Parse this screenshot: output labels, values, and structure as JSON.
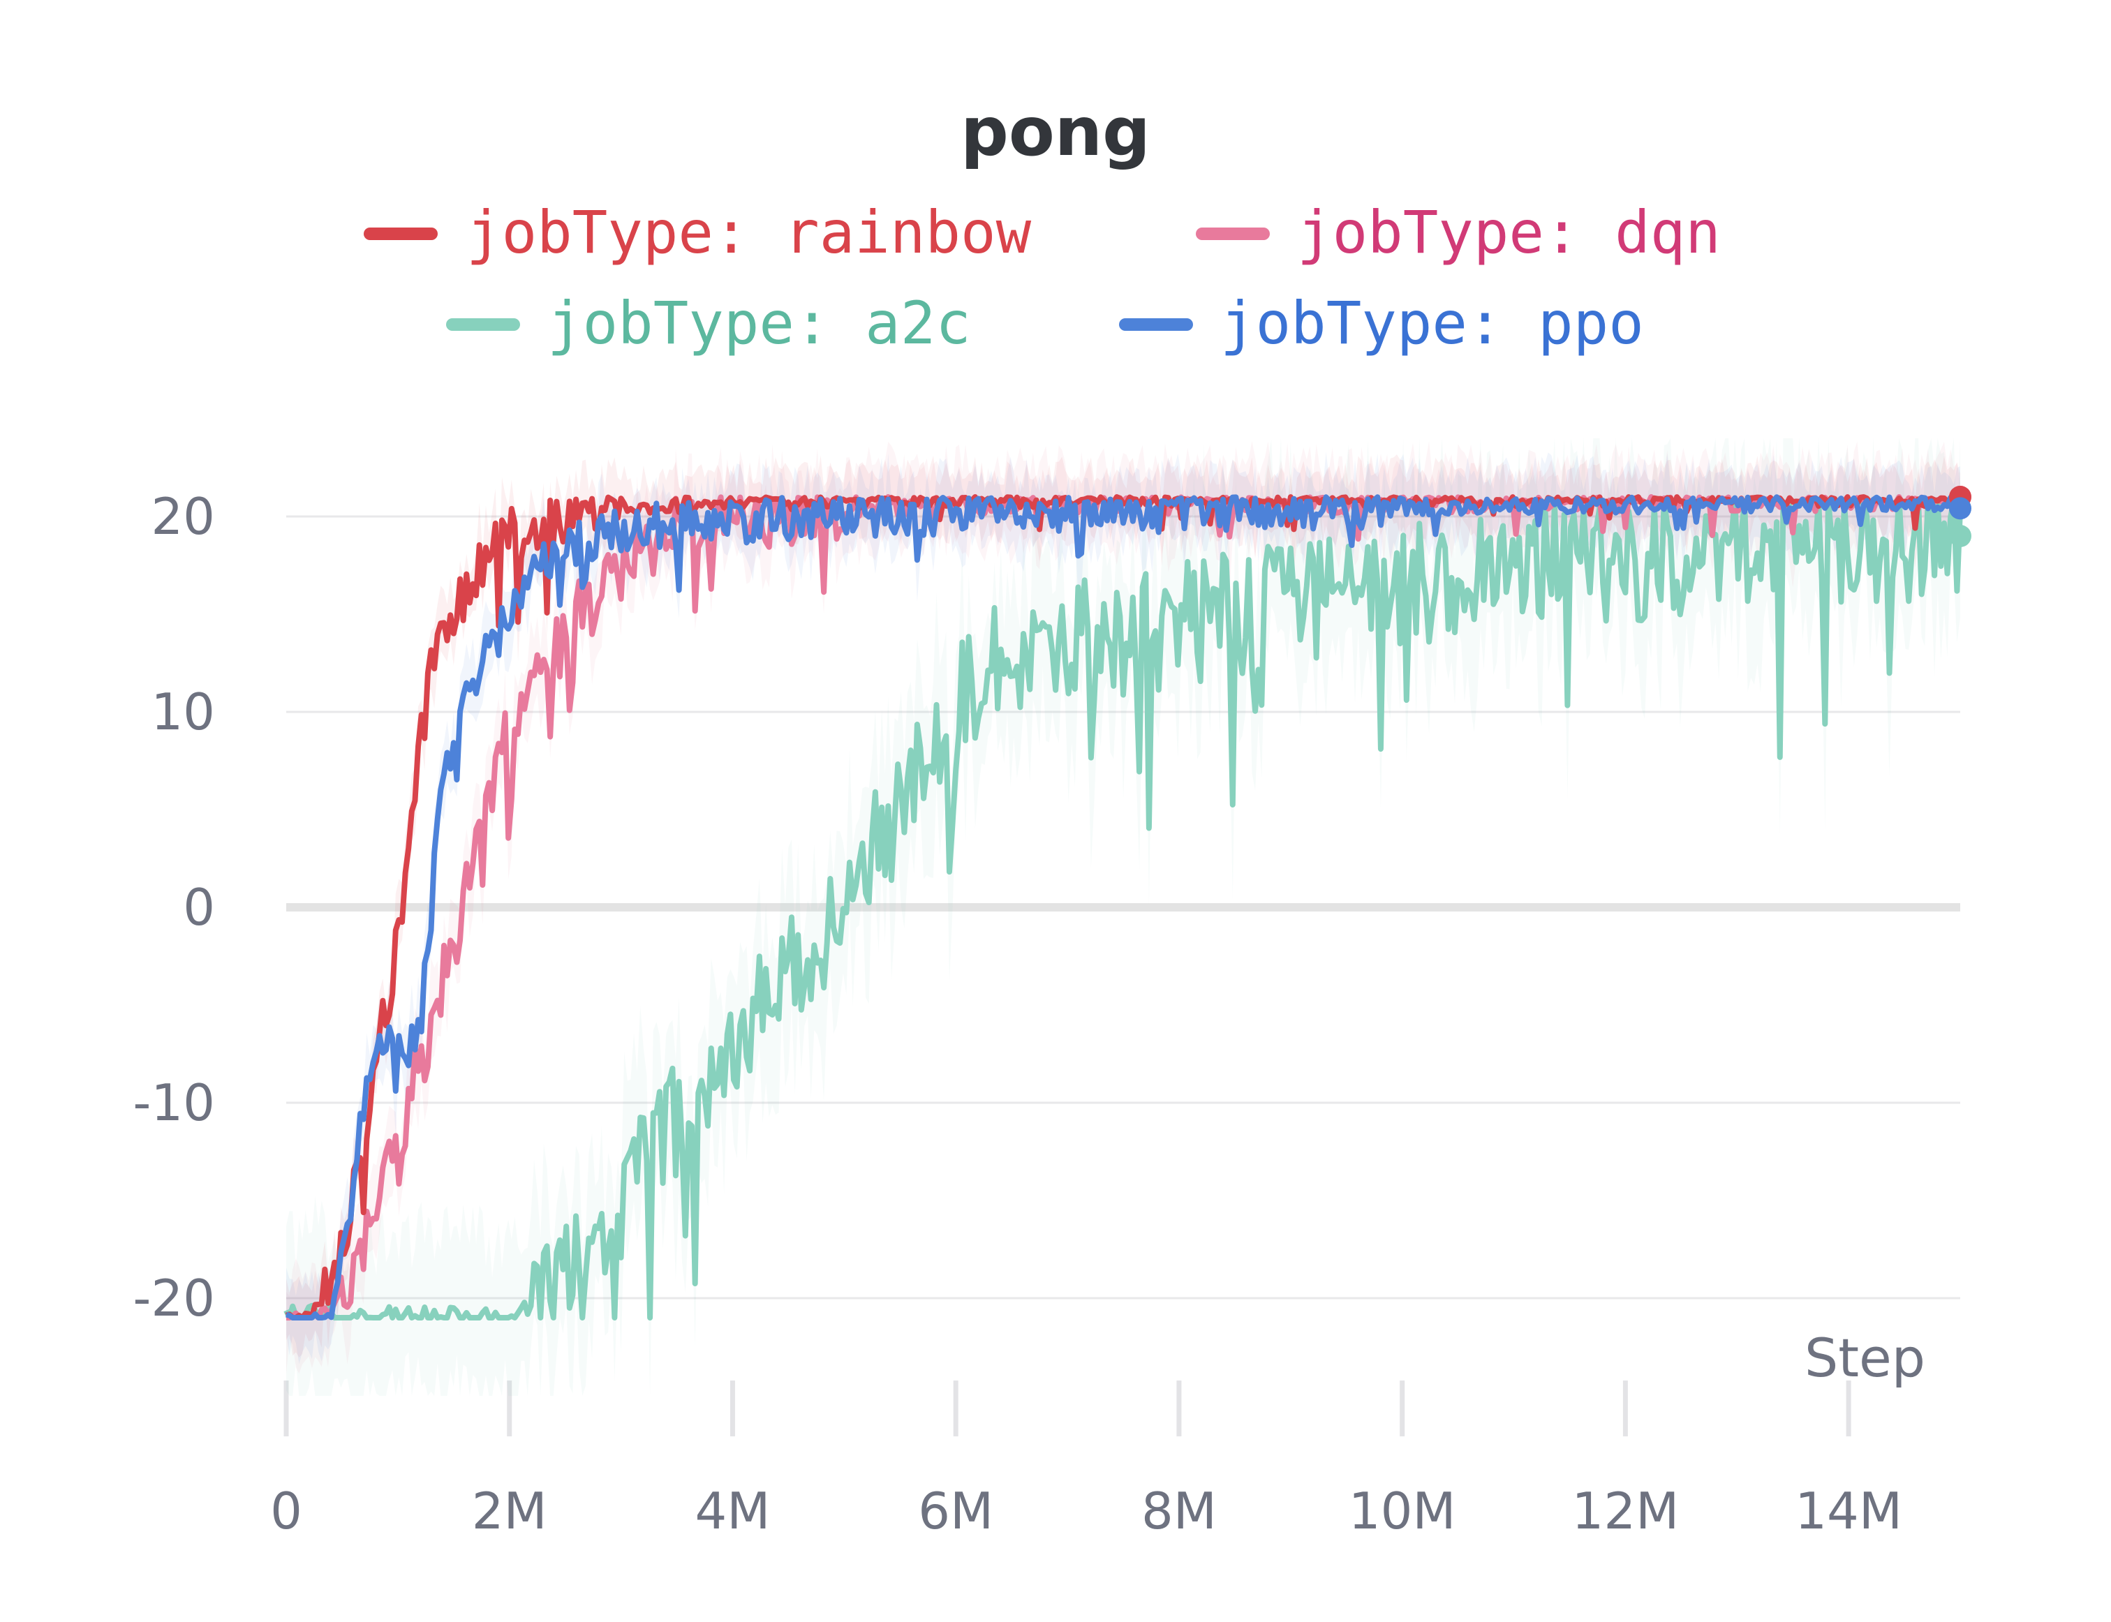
{
  "chart_data": {
    "type": "line",
    "title": "pong",
    "xlabel": "Step",
    "ylabel": "",
    "xlim": [
      0,
      15000000
    ],
    "ylim": [
      -25,
      25
    ],
    "x_ticks": [
      0,
      2000000,
      4000000,
      6000000,
      8000000,
      10000000,
      12000000,
      14000000
    ],
    "x_tick_labels": [
      "0",
      "2M",
      "4M",
      "6M",
      "8M",
      "10M",
      "12M",
      "14M"
    ],
    "y_ticks": [
      -20,
      -10,
      0,
      10,
      20
    ],
    "y_tick_labels": [
      "-20",
      "-10",
      "0",
      "10",
      "20"
    ],
    "grid": true,
    "legend_position": "top",
    "series": [
      {
        "name": "jobType: rainbow",
        "color": "#d9434a",
        "text_color": "#d9434a",
        "x": [
          0,
          200000,
          400000,
          500000,
          600000,
          700000,
          800000,
          900000,
          1000000,
          1100000,
          1200000,
          1300000,
          1400000,
          1500000,
          1600000,
          1700000,
          1800000,
          1900000,
          2000000,
          2200000,
          2400000,
          2600000,
          2800000,
          3000000,
          3500000,
          4000000,
          5000000,
          6000000,
          8000000,
          10000000,
          12000000,
          14000000,
          15000000
        ],
        "y": [
          -21,
          -21,
          -19,
          -17,
          -15,
          -12,
          -8,
          -5,
          -2,
          3,
          8,
          12,
          14,
          15,
          16,
          17,
          18,
          18.5,
          19,
          19.5,
          20,
          20.2,
          20.3,
          20.5,
          20.7,
          20.8,
          20.9,
          20.9,
          21,
          21,
          21,
          21,
          21
        ]
      },
      {
        "name": "jobType: dqn",
        "color": "#e87a9c",
        "text_color": "#d13a76",
        "x": [
          0,
          300000,
          600000,
          800000,
          1000000,
          1100000,
          1200000,
          1300000,
          1400000,
          1500000,
          1600000,
          1700000,
          1800000,
          1900000,
          2000000,
          2200000,
          2400000,
          2600000,
          2800000,
          3000000,
          3200000,
          3500000,
          4000000,
          4500000,
          5000000,
          6000000,
          8000000,
          10000000,
          12000000,
          14000000,
          15000000
        ],
        "y": [
          -21,
          -21,
          -19,
          -15,
          -13,
          -10,
          -8,
          -6,
          -4,
          -2,
          1,
          3,
          5,
          7,
          9,
          11,
          13,
          15,
          16,
          17.5,
          18.5,
          19.5,
          20,
          20.3,
          20.5,
          20.6,
          20.7,
          20.8,
          20.8,
          20.9,
          21
        ]
      },
      {
        "name": "jobType: a2c",
        "color": "#87d1bd",
        "text_color": "#5cb89f",
        "x": [
          0,
          1000000,
          2000000,
          2200000,
          2500000,
          2800000,
          3000000,
          3300000,
          3600000,
          4000000,
          4300000,
          4600000,
          4900000,
          5200000,
          5500000,
          5800000,
          6100000,
          6500000,
          7000000,
          7500000,
          8000000,
          8500000,
          9000000,
          9500000,
          10000000,
          10500000,
          11000000,
          11500000,
          12000000,
          12500000,
          13000000,
          13500000,
          14000000,
          14500000,
          15000000
        ],
        "y": [
          -21,
          -21,
          -21,
          -20,
          -19,
          -17,
          -15,
          -12,
          -10,
          -7,
          -5,
          -3,
          -1,
          2,
          5,
          8,
          11,
          13,
          13.5,
          14,
          14.5,
          15,
          15.5,
          16,
          16.5,
          17,
          17.3,
          17.6,
          17.8,
          18,
          18.2,
          18.4,
          18.6,
          18.8,
          19
        ]
      },
      {
        "name": "jobType: ppo",
        "color": "#4d82d9",
        "text_color": "#3a72d4",
        "x": [
          0,
          400000,
          500000,
          600000,
          700000,
          800000,
          900000,
          1000000,
          1100000,
          1200000,
          1300000,
          1400000,
          1500000,
          1600000,
          1700000,
          1800000,
          1900000,
          2000000,
          2200000,
          2400000,
          2600000,
          2800000,
          3000000,
          3500000,
          4000000,
          5000000,
          6000000,
          8000000,
          10000000,
          12000000,
          14000000,
          15000000
        ],
        "y": [
          -21,
          -21,
          -18,
          -14,
          -10,
          -8,
          -7,
          -7,
          -7,
          -6,
          0,
          6,
          9,
          11,
          12,
          13,
          14,
          15,
          17,
          18,
          18.5,
          19,
          19.3,
          19.6,
          19.8,
          20,
          20.2,
          20.4,
          20.5,
          20.6,
          20.7,
          20.7
        ]
      }
    ]
  }
}
